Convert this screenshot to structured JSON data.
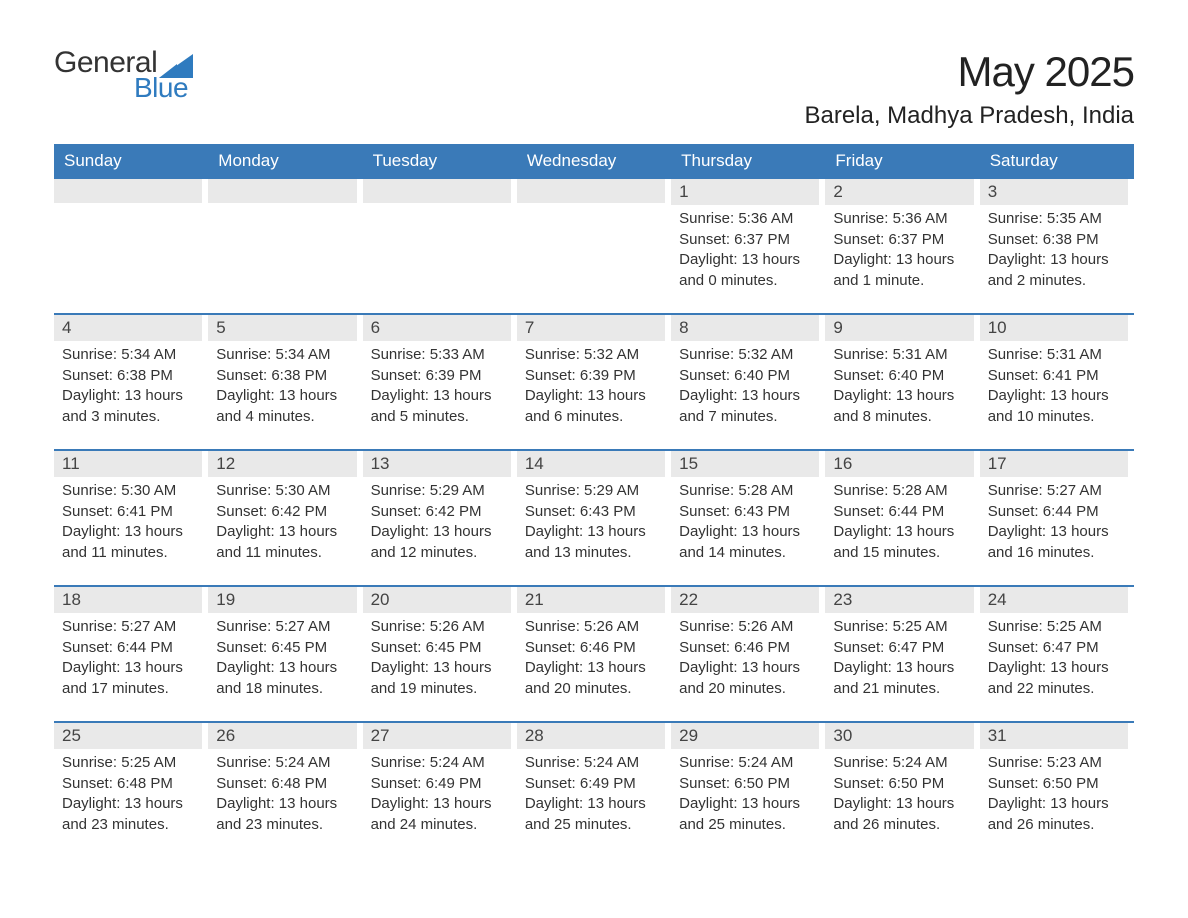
{
  "logo": {
    "word1": "General",
    "word2": "Blue"
  },
  "header": {
    "title": "May 2025",
    "subtitle": "Barela, Madhya Pradesh, India"
  },
  "colors": {
    "brand_blue": "#3a7ab8",
    "logo_blue": "#2f7bbf",
    "header_text": "#ffffff",
    "daynum_bg": "#e9e9e9",
    "text": "#333333",
    "background": "#ffffff"
  },
  "days_of_week": [
    "Sunday",
    "Monday",
    "Tuesday",
    "Wednesday",
    "Thursday",
    "Friday",
    "Saturday"
  ],
  "weeks": [
    [
      {
        "n": "",
        "sunrise": "",
        "sunset": "",
        "daylight": ""
      },
      {
        "n": "",
        "sunrise": "",
        "sunset": "",
        "daylight": ""
      },
      {
        "n": "",
        "sunrise": "",
        "sunset": "",
        "daylight": ""
      },
      {
        "n": "",
        "sunrise": "",
        "sunset": "",
        "daylight": ""
      },
      {
        "n": "1",
        "sunrise": "Sunrise: 5:36 AM",
        "sunset": "Sunset: 6:37 PM",
        "daylight": "Daylight: 13 hours and 0 minutes."
      },
      {
        "n": "2",
        "sunrise": "Sunrise: 5:36 AM",
        "sunset": "Sunset: 6:37 PM",
        "daylight": "Daylight: 13 hours and 1 minute."
      },
      {
        "n": "3",
        "sunrise": "Sunrise: 5:35 AM",
        "sunset": "Sunset: 6:38 PM",
        "daylight": "Daylight: 13 hours and 2 minutes."
      }
    ],
    [
      {
        "n": "4",
        "sunrise": "Sunrise: 5:34 AM",
        "sunset": "Sunset: 6:38 PM",
        "daylight": "Daylight: 13 hours and 3 minutes."
      },
      {
        "n": "5",
        "sunrise": "Sunrise: 5:34 AM",
        "sunset": "Sunset: 6:38 PM",
        "daylight": "Daylight: 13 hours and 4 minutes."
      },
      {
        "n": "6",
        "sunrise": "Sunrise: 5:33 AM",
        "sunset": "Sunset: 6:39 PM",
        "daylight": "Daylight: 13 hours and 5 minutes."
      },
      {
        "n": "7",
        "sunrise": "Sunrise: 5:32 AM",
        "sunset": "Sunset: 6:39 PM",
        "daylight": "Daylight: 13 hours and 6 minutes."
      },
      {
        "n": "8",
        "sunrise": "Sunrise: 5:32 AM",
        "sunset": "Sunset: 6:40 PM",
        "daylight": "Daylight: 13 hours and 7 minutes."
      },
      {
        "n": "9",
        "sunrise": "Sunrise: 5:31 AM",
        "sunset": "Sunset: 6:40 PM",
        "daylight": "Daylight: 13 hours and 8 minutes."
      },
      {
        "n": "10",
        "sunrise": "Sunrise: 5:31 AM",
        "sunset": "Sunset: 6:41 PM",
        "daylight": "Daylight: 13 hours and 10 minutes."
      }
    ],
    [
      {
        "n": "11",
        "sunrise": "Sunrise: 5:30 AM",
        "sunset": "Sunset: 6:41 PM",
        "daylight": "Daylight: 13 hours and 11 minutes."
      },
      {
        "n": "12",
        "sunrise": "Sunrise: 5:30 AM",
        "sunset": "Sunset: 6:42 PM",
        "daylight": "Daylight: 13 hours and 11 minutes."
      },
      {
        "n": "13",
        "sunrise": "Sunrise: 5:29 AM",
        "sunset": "Sunset: 6:42 PM",
        "daylight": "Daylight: 13 hours and 12 minutes."
      },
      {
        "n": "14",
        "sunrise": "Sunrise: 5:29 AM",
        "sunset": "Sunset: 6:43 PM",
        "daylight": "Daylight: 13 hours and 13 minutes."
      },
      {
        "n": "15",
        "sunrise": "Sunrise: 5:28 AM",
        "sunset": "Sunset: 6:43 PM",
        "daylight": "Daylight: 13 hours and 14 minutes."
      },
      {
        "n": "16",
        "sunrise": "Sunrise: 5:28 AM",
        "sunset": "Sunset: 6:44 PM",
        "daylight": "Daylight: 13 hours and 15 minutes."
      },
      {
        "n": "17",
        "sunrise": "Sunrise: 5:27 AM",
        "sunset": "Sunset: 6:44 PM",
        "daylight": "Daylight: 13 hours and 16 minutes."
      }
    ],
    [
      {
        "n": "18",
        "sunrise": "Sunrise: 5:27 AM",
        "sunset": "Sunset: 6:44 PM",
        "daylight": "Daylight: 13 hours and 17 minutes."
      },
      {
        "n": "19",
        "sunrise": "Sunrise: 5:27 AM",
        "sunset": "Sunset: 6:45 PM",
        "daylight": "Daylight: 13 hours and 18 minutes."
      },
      {
        "n": "20",
        "sunrise": "Sunrise: 5:26 AM",
        "sunset": "Sunset: 6:45 PM",
        "daylight": "Daylight: 13 hours and 19 minutes."
      },
      {
        "n": "21",
        "sunrise": "Sunrise: 5:26 AM",
        "sunset": "Sunset: 6:46 PM",
        "daylight": "Daylight: 13 hours and 20 minutes."
      },
      {
        "n": "22",
        "sunrise": "Sunrise: 5:26 AM",
        "sunset": "Sunset: 6:46 PM",
        "daylight": "Daylight: 13 hours and 20 minutes."
      },
      {
        "n": "23",
        "sunrise": "Sunrise: 5:25 AM",
        "sunset": "Sunset: 6:47 PM",
        "daylight": "Daylight: 13 hours and 21 minutes."
      },
      {
        "n": "24",
        "sunrise": "Sunrise: 5:25 AM",
        "sunset": "Sunset: 6:47 PM",
        "daylight": "Daylight: 13 hours and 22 minutes."
      }
    ],
    [
      {
        "n": "25",
        "sunrise": "Sunrise: 5:25 AM",
        "sunset": "Sunset: 6:48 PM",
        "daylight": "Daylight: 13 hours and 23 minutes."
      },
      {
        "n": "26",
        "sunrise": "Sunrise: 5:24 AM",
        "sunset": "Sunset: 6:48 PM",
        "daylight": "Daylight: 13 hours and 23 minutes."
      },
      {
        "n": "27",
        "sunrise": "Sunrise: 5:24 AM",
        "sunset": "Sunset: 6:49 PM",
        "daylight": "Daylight: 13 hours and 24 minutes."
      },
      {
        "n": "28",
        "sunrise": "Sunrise: 5:24 AM",
        "sunset": "Sunset: 6:49 PM",
        "daylight": "Daylight: 13 hours and 25 minutes."
      },
      {
        "n": "29",
        "sunrise": "Sunrise: 5:24 AM",
        "sunset": "Sunset: 6:50 PM",
        "daylight": "Daylight: 13 hours and 25 minutes."
      },
      {
        "n": "30",
        "sunrise": "Sunrise: 5:24 AM",
        "sunset": "Sunset: 6:50 PM",
        "daylight": "Daylight: 13 hours and 26 minutes."
      },
      {
        "n": "31",
        "sunrise": "Sunrise: 5:23 AM",
        "sunset": "Sunset: 6:50 PM",
        "daylight": "Daylight: 13 hours and 26 minutes."
      }
    ]
  ]
}
